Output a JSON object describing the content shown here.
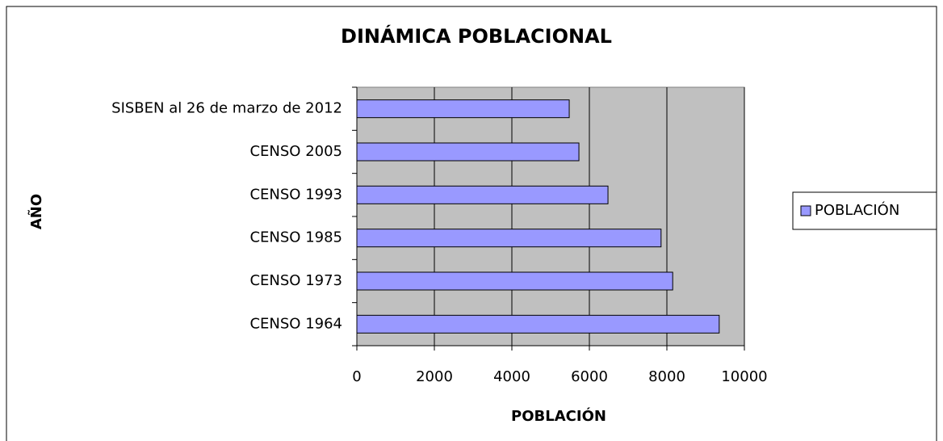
{
  "chart_data": {
    "type": "bar",
    "orientation": "horizontal",
    "title": "DINÁMICA POBLACIONAL",
    "x_label": "POBLACIÓN",
    "y_label": "AÑO",
    "categories": [
      "SISBEN al 26 de marzo de 2012",
      "CENSO 2005",
      "CENSO 1993",
      "CENSO 1985",
      "CENSO 1973",
      "CENSO 1964"
    ],
    "series": [
      {
        "name": "POBLACIÓN",
        "color": "#9999ff",
        "values": [
          5480,
          5730,
          6480,
          7850,
          8150,
          9350
        ]
      }
    ],
    "xlim": [
      0,
      10000
    ],
    "xticks": [
      0,
      2000,
      4000,
      6000,
      8000,
      10000
    ],
    "grid": true,
    "legend": "right"
  }
}
